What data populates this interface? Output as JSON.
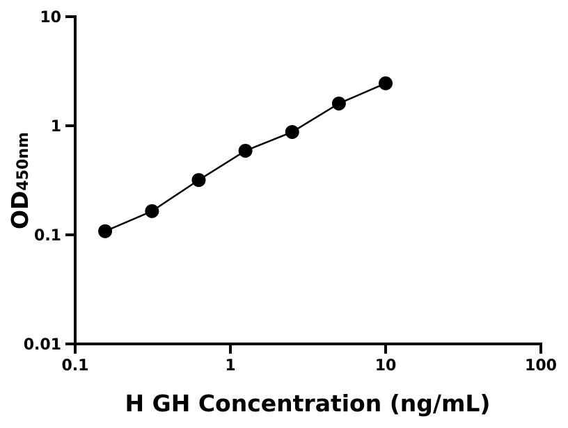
{
  "chart_data": {
    "type": "scatter",
    "title": "",
    "xlabel": "H GH Concentration (ng/mL)",
    "ylabel_main": "OD",
    "ylabel_sub": "450nm",
    "x_scale": "log",
    "y_scale": "log",
    "xlim": [
      0.1,
      100
    ],
    "ylim": [
      0.01,
      10
    ],
    "x_ticks": [
      0.1,
      1,
      10,
      100
    ],
    "x_tick_labels": [
      "0.1",
      "1",
      "10",
      "100"
    ],
    "y_ticks": [
      0.01,
      0.1,
      1,
      10
    ],
    "y_tick_labels": [
      "0.01",
      "0.1",
      "1",
      "10"
    ],
    "grid": false,
    "fit_line": true,
    "marker_color": "#000000",
    "series": [
      {
        "x": [
          0.156,
          0.3125,
          0.625,
          1.25,
          2.5,
          5,
          10
        ],
        "y": [
          0.108,
          0.165,
          0.318,
          0.59,
          0.877,
          1.6,
          2.45
        ]
      }
    ]
  }
}
